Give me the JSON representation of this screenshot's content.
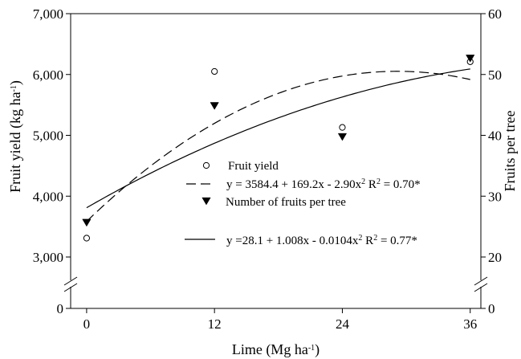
{
  "chart_data": {
    "type": "scatter",
    "xlabel": "Lime (Mg ha",
    "xlabel_sup": "-1",
    "xlabel_end": ")",
    "ylabel_left": "Fruit yield (kg ha",
    "ylabel_left_sup": "-1",
    "ylabel_left_end": ")",
    "ylabel_right": "Fruits per tree",
    "x_ticks": [
      0,
      12,
      24,
      36
    ],
    "x_range": [
      -1.5,
      37
    ],
    "y_left_ticks": [
      3000,
      4000,
      5000,
      6000,
      7000
    ],
    "y_left_tick_labels": [
      "3,000",
      "4,000",
      "5,000",
      "6,000",
      "7,000"
    ],
    "y_left_range": [
      3000,
      7000
    ],
    "y_left_break_label": "0",
    "y_right_ticks": [
      20,
      30,
      40,
      50,
      60
    ],
    "y_right_tick_labels": [
      "20",
      "30",
      "40",
      "50",
      "60"
    ],
    "y_right_range": [
      20,
      60
    ],
    "y_right_break_label": "0",
    "axis_break": true,
    "grid": false,
    "series": [
      {
        "name": "Fruit yield",
        "marker": "open-circle",
        "axis": "left",
        "x": [
          0,
          12,
          24,
          36
        ],
        "y": [
          3310,
          6050,
          5130,
          6210
        ],
        "fit": {
          "a": 3584.4,
          "b": 169.2,
          "c": -2.9,
          "style": "dashed"
        },
        "equation": "y = 3584.4 + 169.2x - 2.90x",
        "r2": "R",
        "r2_value": " = 0.70*"
      },
      {
        "name": "Number of fruits per tree",
        "marker": "filled-triangle-down",
        "axis": "right",
        "x": [
          0,
          12,
          24,
          36
        ],
        "y": [
          25.7,
          44.9,
          39.8,
          52.7
        ],
        "fit": {
          "a": 28.1,
          "b": 1.008,
          "c": -0.0104,
          "style": "solid"
        },
        "equation": "y =28.1 + 1.008x - 0.0104x",
        "r2": "R",
        "r2_value": " = 0.77*"
      }
    ],
    "legend_position": "center-right",
    "sup2": "2"
  }
}
